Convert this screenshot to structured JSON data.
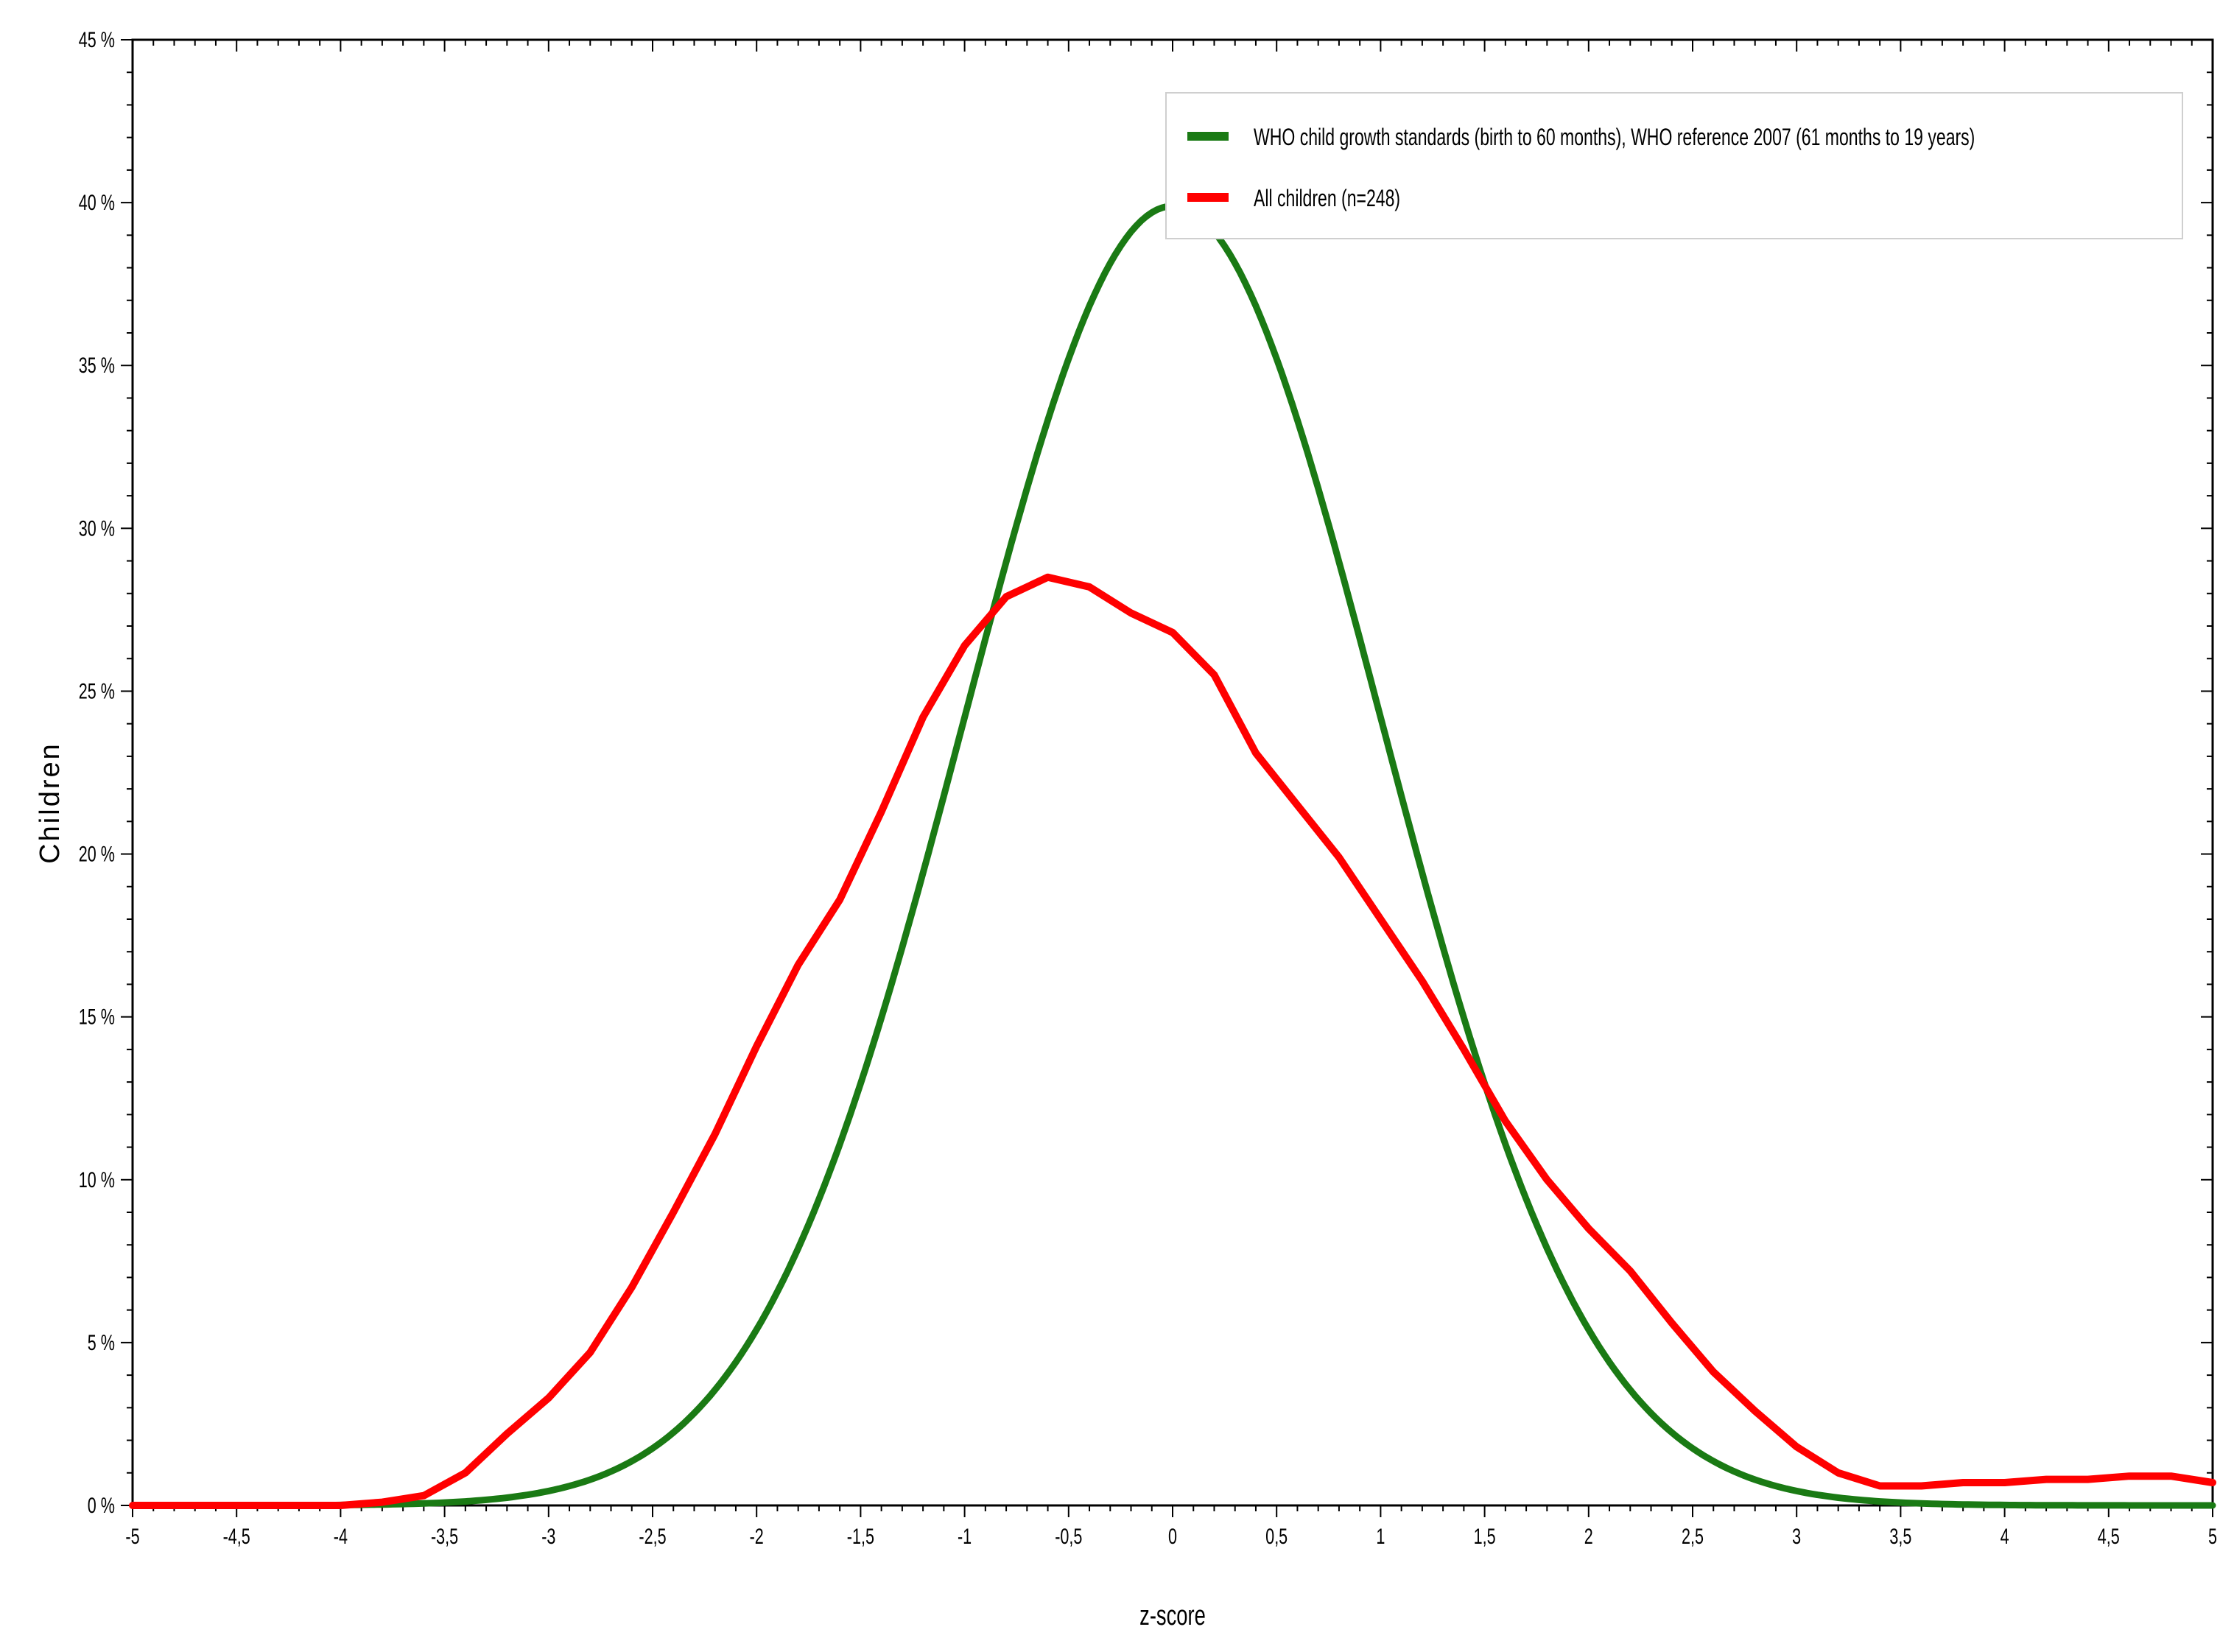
{
  "chart_data": {
    "type": "line",
    "xlabel": "z-score",
    "ylabel": "Children",
    "xlim": [
      -5,
      5
    ],
    "ylim": [
      0,
      45
    ],
    "x_tick_labels": [
      "-5",
      "-4,5",
      "-4",
      "-3,5",
      "-3",
      "-2,5",
      "-2",
      "-1,5",
      "-1",
      "-0,5",
      "0",
      "0,5",
      "1",
      "1,5",
      "2",
      "2,5",
      "3",
      "3,5",
      "4",
      "4,5",
      "5"
    ],
    "y_tick_labels": [
      "0 %",
      "5 %",
      "10 %",
      "15 %",
      "20 %",
      "25 %",
      "30 %",
      "35 %",
      "40 %",
      "45 %"
    ],
    "legend_position": "top-right",
    "series": [
      {
        "name": "WHO child growth standards (birth to 60 months), WHO reference 2007 (61 months to 19 years)",
        "color": "#1a7a14",
        "distribution": "standard-normal",
        "x": [
          -5,
          -4.5,
          -4,
          -3.5,
          -3,
          -2.5,
          -2,
          -1.5,
          -1,
          -0.5,
          0,
          0.5,
          1,
          1.5,
          2,
          2.5,
          3,
          3.5,
          4,
          4.5,
          5
        ],
        "y": [
          0,
          0,
          0.01,
          0.09,
          0.44,
          1.75,
          5.4,
          12.95,
          24.2,
          35.21,
          39.89,
          35.21,
          24.2,
          12.95,
          5.4,
          1.75,
          0.44,
          0.09,
          0.01,
          0,
          0
        ]
      },
      {
        "name": "All children (n=248)",
        "color": "#ff0000",
        "x": [
          -5,
          -4.6,
          -4.2,
          -4,
          -3.8,
          -3.6,
          -3.4,
          -3.2,
          -3,
          -2.8,
          -2.6,
          -2.4,
          -2.2,
          -2,
          -1.8,
          -1.6,
          -1.4,
          -1.2,
          -1,
          -0.8,
          -0.6,
          -0.4,
          -0.2,
          0,
          0.2,
          0.4,
          0.6,
          0.8,
          1,
          1.2,
          1.4,
          1.6,
          1.8,
          2,
          2.2,
          2.4,
          2.6,
          2.8,
          3,
          3.2,
          3.4,
          3.6,
          3.8,
          4,
          4.2,
          4.4,
          4.6,
          4.8,
          5
        ],
        "y": [
          0,
          0,
          0,
          0,
          0.1,
          0.3,
          1,
          2.2,
          3.3,
          4.7,
          6.7,
          9,
          11.4,
          14.1,
          16.6,
          18.6,
          21.3,
          24.2,
          26.4,
          27.9,
          28.5,
          28.2,
          27.4,
          26.8,
          25.5,
          23.1,
          21.5,
          19.9,
          18,
          16.1,
          14,
          11.8,
          10,
          8.5,
          7.2,
          5.6,
          4.1,
          2.9,
          1.8,
          1,
          0.6,
          0.6,
          0.7,
          0.7,
          0.8,
          0.8,
          0.9,
          0.9,
          0.7
        ]
      }
    ]
  }
}
